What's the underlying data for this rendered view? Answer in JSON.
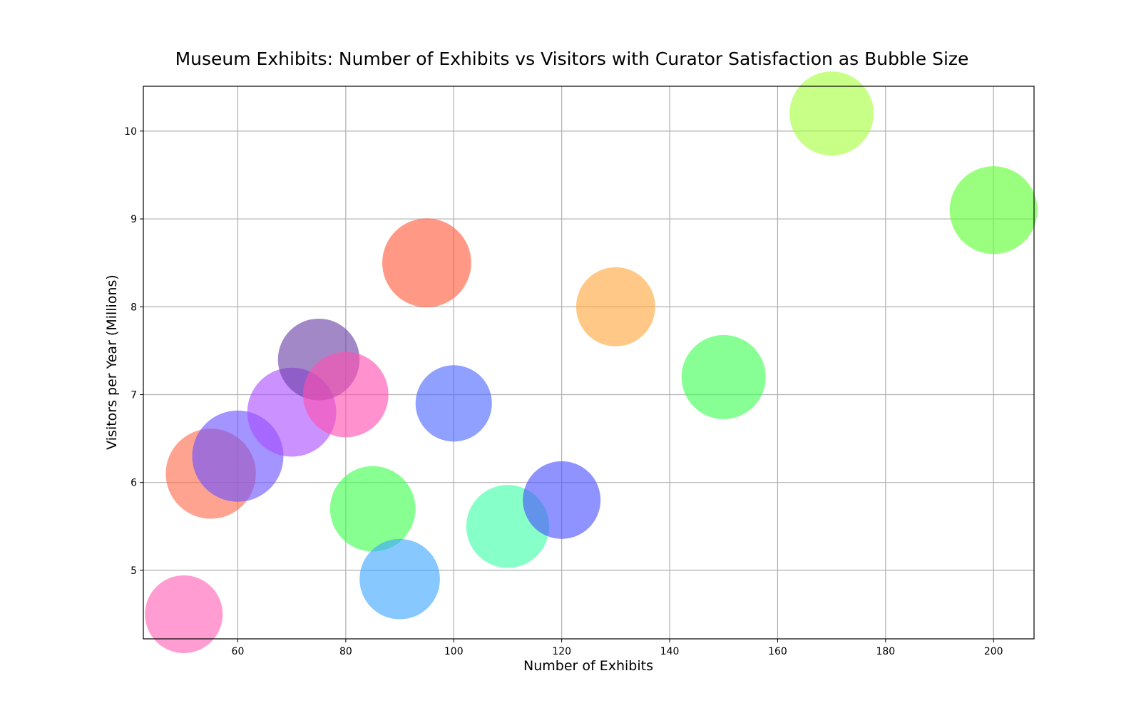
{
  "chart_data": {
    "type": "scatter",
    "variant": "bubble",
    "title": "Museum Exhibits: Number of Exhibits vs Visitors with Curator Satisfaction as Bubble Size",
    "xlabel": "Number of Exhibits",
    "ylabel": "Visitors per Year (Millions)",
    "xlim": [
      42.5,
      207.5
    ],
    "ylim": [
      4.22,
      10.51
    ],
    "xticks": [
      60,
      80,
      100,
      120,
      140,
      160,
      180,
      200
    ],
    "yticks": [
      5,
      6,
      7,
      8,
      9,
      10
    ],
    "grid": true,
    "legend": "none",
    "points": [
      {
        "x": 50,
        "y": 4.5,
        "size": 0.58,
        "color": "#ff5fb4"
      },
      {
        "x": 55,
        "y": 6.1,
        "size": 0.78,
        "color": "#ff6a4d"
      },
      {
        "x": 60,
        "y": 6.3,
        "size": 0.8,
        "color": "#6a52ff"
      },
      {
        "x": 70,
        "y": 6.8,
        "size": 0.76,
        "color": "#a94dff"
      },
      {
        "x": 75,
        "y": 7.4,
        "size": 0.64,
        "color": "#6a3fa6"
      },
      {
        "x": 80,
        "y": 7.0,
        "size": 0.7,
        "color": "#ff4fb0"
      },
      {
        "x": 85,
        "y": 5.7,
        "size": 0.7,
        "color": "#3dff4d"
      },
      {
        "x": 90,
        "y": 4.9,
        "size": 0.62,
        "color": "#3ca6ff"
      },
      {
        "x": 95,
        "y": 8.5,
        "size": 0.76,
        "color": "#ff5a3c"
      },
      {
        "x": 100,
        "y": 6.9,
        "size": 0.56,
        "color": "#4a66ff"
      },
      {
        "x": 110,
        "y": 5.5,
        "size": 0.66,
        "color": "#3cffa6"
      },
      {
        "x": 120,
        "y": 5.8,
        "size": 0.58,
        "color": "#4a50ff"
      },
      {
        "x": 130,
        "y": 8.0,
        "size": 0.6,
        "color": "#ffa63d"
      },
      {
        "x": 150,
        "y": 7.2,
        "size": 0.68,
        "color": "#3dff52"
      },
      {
        "x": 170,
        "y": 10.2,
        "size": 0.68,
        "color": "#a6ff3d"
      },
      {
        "x": 200,
        "y": 9.1,
        "size": 0.74,
        "color": "#5cff2e"
      }
    ]
  }
}
